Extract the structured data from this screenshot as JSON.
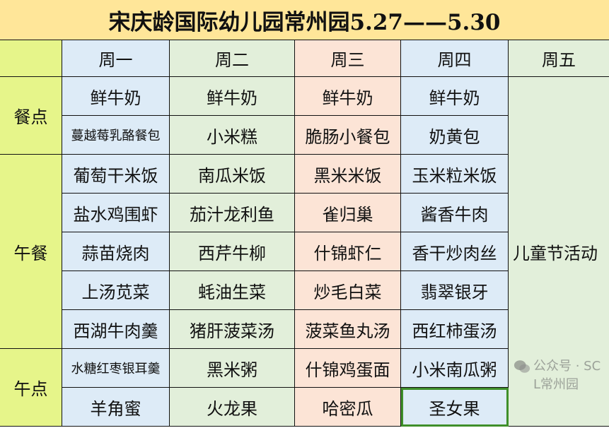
{
  "title": "宋庆龄国际幼儿园常州园5.27——5.30",
  "days": [
    "周一",
    "周二",
    "周三",
    "周四",
    "周五"
  ],
  "sections": [
    {
      "label": "餐点",
      "rows": [
        [
          "鲜牛奶",
          "鲜牛奶",
          "鲜牛奶",
          "鲜牛奶"
        ],
        [
          "蔓越莓乳酪餐包",
          "小米糕",
          "脆肠小餐包",
          "奶黄包"
        ]
      ]
    },
    {
      "label": "午餐",
      "rows": [
        [
          "葡萄干米饭",
          "南瓜米饭",
          "黑米米饭",
          "玉米粒米饭"
        ],
        [
          "盐水鸡围虾",
          "茄汁龙利鱼",
          "雀归巢",
          "酱香牛肉"
        ],
        [
          "蒜苗烧肉",
          "西芹牛柳",
          "什锦虾仁",
          "香干炒肉丝"
        ],
        [
          "上汤苋菜",
          "蚝油生菜",
          "炒毛白菜",
          "翡翠银牙"
        ],
        [
          "西湖牛肉羹",
          "猪肝菠菜汤",
          "菠菜鱼丸汤",
          "西红柿蛋汤"
        ]
      ]
    },
    {
      "label": "午点",
      "rows": [
        [
          "水糖红枣银耳羹",
          "黑米粥",
          "什锦鸡蛋面",
          "小米南瓜粥"
        ],
        [
          "羊角蜜",
          "火龙果",
          "哈密瓜",
          "圣女果"
        ]
      ]
    }
  ],
  "friday": "儿童节活动",
  "watermark": {
    "icon": "wechat-icon",
    "text": "公众号 · SCL常州园"
  },
  "colors": {
    "title": "#FFE699",
    "label": "#E6F58A",
    "mon": "#DDEBF7",
    "tue": "#E2EFDA",
    "wed": "#FCE4D6",
    "thu": "#DDEBF7",
    "fri": "#E2EFDA",
    "selection": "#3F8F2A"
  }
}
